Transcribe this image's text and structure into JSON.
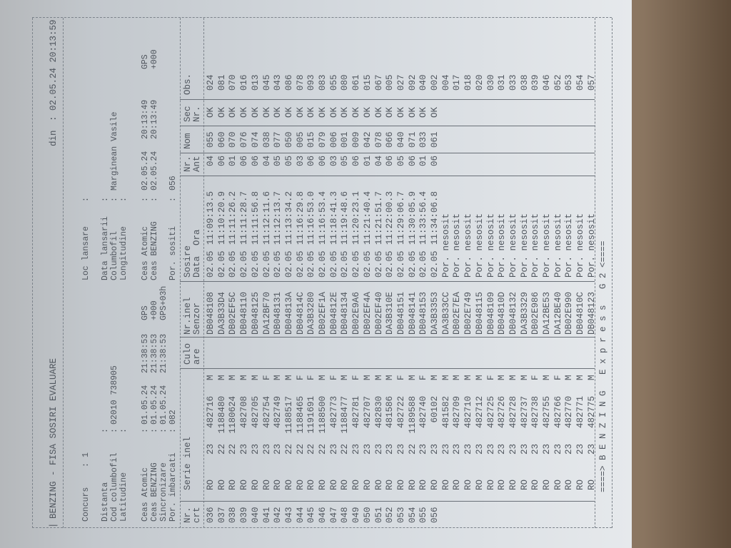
{
  "header": {
    "title": "BENZING - FISA SOSIRI EVALUARE",
    "din_label": "din",
    "din_value": "02.05.24 20:13:59"
  },
  "info_left": {
    "concurs": {
      "label": "Concurs",
      "value": "1"
    },
    "distanta": {
      "label": "Distanta",
      "value": ""
    },
    "cod_columbofil": {
      "label": "Cod columbofil",
      "value": "02010 738905"
    },
    "latitudine": {
      "label": "Latitudine",
      "value": ""
    },
    "ceas_atomic": {
      "label": "Ceas Atomic",
      "date": "01.05.24",
      "time": "21:38:53",
      "suffix": "GPS"
    },
    "ceas_benzing": {
      "label": "Ceas BENZING",
      "date": "01.05.24",
      "time": "21:38:53",
      "suffix": "+000"
    },
    "sincronizare": {
      "label": "Sincronizare",
      "date": "01.05.24",
      "time": "21:38:53",
      "suffix": "GPS+03h"
    },
    "por_imbarcati": {
      "label": "Por. imbarcati",
      "value": "082"
    }
  },
  "info_right": {
    "loc_lansare": {
      "label": "Loc lansare",
      "value": ""
    },
    "data_lansarii": {
      "label": "Data lansarii",
      "value": ""
    },
    "columbofil": {
      "label": "Columbofil",
      "value": "Marginean Vasile"
    },
    "longitudine": {
      "label": "Longitudine",
      "value": ""
    },
    "ceas_atomic": {
      "label": "Ceas Atomic",
      "date": "02.05.24",
      "time": "20:13:49",
      "suffix": "GPS"
    },
    "ceas_benzing": {
      "label": "Ceas BENZING",
      "date": "02.05.24",
      "time": "20:13:49",
      "suffix": "+000"
    },
    "por_sositi": {
      "label": "Por. sositi",
      "value": "056"
    }
  },
  "columns": {
    "nr": [
      "Nr.",
      "crt"
    ],
    "serie": [
      "Serie inel",
      ""
    ],
    "culoare": [
      "Culo",
      "are"
    ],
    "senzor": [
      "Nr.inel",
      "Senzor"
    ],
    "sosire": [
      "Sosire",
      "Data  Ora"
    ],
    "ant": [
      "Nr.",
      "Ant"
    ],
    "nom": [
      "Nom",
      ""
    ],
    "sec": [
      "Sec",
      "Nr."
    ],
    "obs": [
      "Obs.",
      ""
    ]
  },
  "rows": [
    {
      "nr": "036",
      "country": "RO",
      "year": "23",
      "ring": "482716",
      "sex": "M",
      "sensor": "DB048108",
      "date": "02.05",
      "time": "11:09:13.5",
      "ant": "04",
      "nom": "055",
      "sec": "OK",
      "obs": "024"
    },
    {
      "nr": "037",
      "country": "RO",
      "year": "22",
      "ring": "1188480",
      "sex": "M",
      "sensor": "DA3B33D4",
      "date": "02.05",
      "time": "11:10:20.9",
      "ant": "06",
      "nom": "060",
      "sec": "OK",
      "obs": "081"
    },
    {
      "nr": "038",
      "country": "RO",
      "year": "22",
      "ring": "1180624",
      "sex": "M",
      "sensor": "DB02EF5C",
      "date": "02.05",
      "time": "11:11:26.2",
      "ant": "01",
      "nom": "070",
      "sec": "OK",
      "obs": "070"
    },
    {
      "nr": "039",
      "country": "RO",
      "year": "23",
      "ring": "482708",
      "sex": "M",
      "sensor": "DB048110",
      "date": "02.05",
      "time": "11:11:28.7",
      "ant": "06",
      "nom": "076",
      "sec": "OK",
      "obs": "016"
    },
    {
      "nr": "040",
      "country": "RO",
      "year": "23",
      "ring": "482705",
      "sex": "M",
      "sensor": "DB048125",
      "date": "02.05",
      "time": "11:11:56.8",
      "ant": "06",
      "nom": "074",
      "sec": "OK",
      "obs": "013"
    },
    {
      "nr": "041",
      "country": "RO",
      "year": "23",
      "ring": "482754",
      "sex": "F",
      "sensor": "DA12BF70",
      "date": "02.05",
      "time": "11:12:11.6",
      "ant": "04",
      "nom": "038",
      "sec": "OK",
      "obs": "045"
    },
    {
      "nr": "042",
      "country": "RO",
      "year": "23",
      "ring": "482749",
      "sex": "M",
      "sensor": "DB048131",
      "date": "02.05",
      "time": "11:12:13.7",
      "ant": "05",
      "nom": "077",
      "sec": "OK",
      "obs": "043"
    },
    {
      "nr": "043",
      "country": "RO",
      "year": "22",
      "ring": "1188517",
      "sex": "M",
      "sensor": "DB04813A",
      "date": "02.05",
      "time": "11:13:34.2",
      "ant": "05",
      "nom": "050",
      "sec": "OK",
      "obs": "086"
    },
    {
      "nr": "044",
      "country": "RO",
      "year": "22",
      "ring": "1188465",
      "sex": "F",
      "sensor": "DB04814C",
      "date": "02.05",
      "time": "11:16:29.8",
      "ant": "03",
      "nom": "005",
      "sec": "OK",
      "obs": "078"
    },
    {
      "nr": "045",
      "country": "RO",
      "year": "22",
      "ring": "1191691",
      "sex": "F",
      "sensor": "DA3B3280",
      "date": "02.05",
      "time": "11:16:53.0",
      "ant": "06",
      "nom": "015",
      "sec": "OK",
      "obs": "093"
    },
    {
      "nr": "046",
      "country": "RO",
      "year": "22",
      "ring": "1188500",
      "sex": "M",
      "sensor": "DB02EF1A",
      "date": "02.05",
      "time": "11:16:53.4",
      "ant": "06",
      "nom": "079",
      "sec": "OK",
      "obs": "083"
    },
    {
      "nr": "047",
      "country": "RO",
      "year": "23",
      "ring": "482773",
      "sex": "F",
      "sensor": "DB04812E",
      "date": "02.05",
      "time": "11:18:41.3",
      "ant": "03",
      "nom": "006",
      "sec": "OK",
      "obs": "055"
    },
    {
      "nr": "048",
      "country": "RO",
      "year": "22",
      "ring": "1188477",
      "sex": "M",
      "sensor": "DB048134",
      "date": "02.05",
      "time": "11:19:48.6",
      "ant": "05",
      "nom": "001",
      "sec": "OK",
      "obs": "080"
    },
    {
      "nr": "049",
      "country": "RO",
      "year": "23",
      "ring": "482781",
      "sex": "F",
      "sensor": "DB02E9A6",
      "date": "02.05",
      "time": "11:20:23.1",
      "ant": "06",
      "nom": "009",
      "sec": "OK",
      "obs": "061"
    },
    {
      "nr": "050",
      "country": "RO",
      "year": "23",
      "ring": "482707",
      "sex": "M",
      "sensor": "DB02EF4A",
      "date": "02.05",
      "time": "11:21:40.4",
      "ant": "01",
      "nom": "042",
      "sec": "OK",
      "obs": "015"
    },
    {
      "nr": "051",
      "country": "RO",
      "year": "23",
      "ring": "482830",
      "sex": "M",
      "sensor": "DB02EF40",
      "date": "02.05",
      "time": "11:21:51.7",
      "ant": "04",
      "nom": "078",
      "sec": "OK",
      "obs": "067"
    },
    {
      "nr": "052",
      "country": "RO",
      "year": "23",
      "ring": "481586",
      "sex": "M",
      "sensor": "DA3B310E",
      "date": "02.05",
      "time": "11:22:00.3",
      "ant": "06",
      "nom": "066",
      "sec": "OK",
      "obs": "005"
    },
    {
      "nr": "053",
      "country": "RO",
      "year": "23",
      "ring": "482722",
      "sex": "F",
      "sensor": "DB048151",
      "date": "02.05",
      "time": "11:29:06.7",
      "ant": "05",
      "nom": "040",
      "sec": "OK",
      "obs": "027"
    },
    {
      "nr": "054",
      "country": "RO",
      "year": "22",
      "ring": "1189588",
      "sex": "M",
      "sensor": "DB048141",
      "date": "02.05",
      "time": "11:30:05.9",
      "ant": "06",
      "nom": "071",
      "sec": "OK",
      "obs": "092"
    },
    {
      "nr": "055",
      "country": "RO",
      "year": "23",
      "ring": "482740",
      "sex": "F",
      "sensor": "DB048153",
      "date": "02.05",
      "time": "11:33:56.4",
      "ant": "01",
      "nom": "033",
      "sec": "OK",
      "obs": "040"
    },
    {
      "nr": "056",
      "country": "RO",
      "year": "23",
      "ring": "60102",
      "sex": "M",
      "sensor": "DA3B3353",
      "date": "02.05",
      "time": "11:34:06.8",
      "ant": "06",
      "nom": "061",
      "sec": "OK",
      "obs": "002"
    },
    {
      "country": "RO",
      "year": "23",
      "ring": "481582",
      "sex": "M",
      "sensor": "DA3B33CC",
      "status": "Por. nesosit",
      "obs": "004"
    },
    {
      "country": "RO",
      "year": "23",
      "ring": "482709",
      "sex": "M",
      "sensor": "DB02E7EA",
      "status": "Por. nesosit",
      "obs": "017"
    },
    {
      "country": "RO",
      "year": "23",
      "ring": "482710",
      "sex": "M",
      "sensor": "DB02E749",
      "status": "Por. nesosit",
      "obs": "018"
    },
    {
      "country": "RO",
      "year": "23",
      "ring": "482712",
      "sex": "M",
      "sensor": "DB048115",
      "status": "Por. nesosit",
      "obs": "020"
    },
    {
      "country": "RO",
      "year": "23",
      "ring": "482725",
      "sex": "F",
      "sensor": "DB048109",
      "status": "Por. nesosit",
      "obs": "030"
    },
    {
      "country": "RO",
      "year": "23",
      "ring": "482726",
      "sex": "M",
      "sensor": "DB04810D",
      "status": "Por. nesosit",
      "obs": "031"
    },
    {
      "country": "RO",
      "year": "23",
      "ring": "482728",
      "sex": "M",
      "sensor": "DB048132",
      "status": "Por. nesosit",
      "obs": "033"
    },
    {
      "country": "RO",
      "year": "23",
      "ring": "482737",
      "sex": "M",
      "sensor": "DA3B3329",
      "status": "Por. nesosit",
      "obs": "038"
    },
    {
      "country": "RO",
      "year": "23",
      "ring": "482738",
      "sex": "F",
      "sensor": "DB02E986",
      "status": "Por. nesosit",
      "obs": "039"
    },
    {
      "country": "RO",
      "year": "23",
      "ring": "482755",
      "sex": "M",
      "sensor": "DA12BE53",
      "status": "Por. nesosit",
      "obs": "046"
    },
    {
      "country": "RO",
      "year": "23",
      "ring": "482766",
      "sex": "F",
      "sensor": "DA12BE40",
      "status": "Por. nesosit",
      "obs": "052"
    },
    {
      "country": "RO",
      "year": "23",
      "ring": "482770",
      "sex": "M",
      "sensor": "DB02E990",
      "status": "Por. nesosit",
      "obs": "053"
    },
    {
      "country": "RO",
      "year": "23",
      "ring": "482771",
      "sex": "M",
      "sensor": "DB04810C",
      "status": "Por. nesosit",
      "obs": "054"
    },
    {
      "country": "RO",
      "year": "23",
      "ring": "482775",
      "sex": "M",
      "sensor": "DB048123",
      "status": "Por. nesosit",
      "obs": "057"
    }
  ],
  "footer": "====> B E N Z I N G   E x p r e s s   G 2 <===="
}
